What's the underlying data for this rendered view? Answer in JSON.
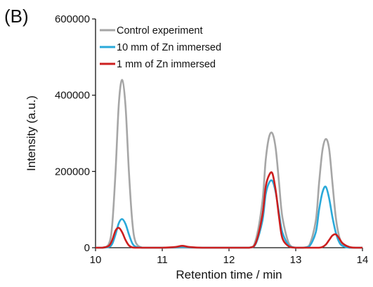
{
  "panel_label": "(B)",
  "chart_data": {
    "type": "line",
    "title": "",
    "xlabel": "Retention time / min",
    "ylabel": "Intensity (a.u.)",
    "xlim": [
      10,
      14
    ],
    "ylim": [
      0,
      600000
    ],
    "xticks": [
      10,
      11,
      12,
      13,
      14
    ],
    "yticks": [
      0,
      200000,
      400000,
      600000
    ],
    "grid": false,
    "legend_position": "top-left",
    "x": [
      10.0,
      10.1,
      10.2,
      10.25,
      10.3,
      10.35,
      10.4,
      10.45,
      10.5,
      10.55,
      10.6,
      10.7,
      10.8,
      11.0,
      11.2,
      11.3,
      11.4,
      11.6,
      12.0,
      12.3,
      12.4,
      12.5,
      12.55,
      12.6,
      12.65,
      12.7,
      12.75,
      12.8,
      12.9,
      13.0,
      13.1,
      13.2,
      13.3,
      13.35,
      13.4,
      13.45,
      13.5,
      13.55,
      13.6,
      13.65,
      13.7,
      13.8,
      13.9,
      14.0
    ],
    "series": [
      {
        "name": "Control experiment",
        "color": "#a6a6a6",
        "values": [
          0,
          0,
          10000,
          60000,
          200000,
          380000,
          440000,
          370000,
          200000,
          70000,
          15000,
          0,
          0,
          0,
          0,
          0,
          0,
          0,
          0,
          0,
          20000,
          120000,
          230000,
          290000,
          300000,
          260000,
          170000,
          80000,
          10000,
          0,
          0,
          5000,
          70000,
          170000,
          255000,
          285000,
          260000,
          170000,
          80000,
          30000,
          10000,
          0,
          0,
          0
        ]
      },
      {
        "name": "10 mm of Zn immersed",
        "color": "#2aa9d9",
        "values": [
          0,
          0,
          2000,
          10000,
          35000,
          65000,
          75000,
          62000,
          35000,
          12000,
          3000,
          0,
          0,
          0,
          1000,
          2000,
          1000,
          0,
          0,
          0,
          10000,
          70000,
          140000,
          170000,
          175000,
          145000,
          90000,
          40000,
          5000,
          0,
          0,
          3000,
          40000,
          100000,
          145000,
          160000,
          130000,
          80000,
          40000,
          15000,
          5000,
          0,
          0,
          0
        ]
      },
      {
        "name": "1 mm of Zn immersed",
        "color": "#cc1f1f",
        "values": [
          0,
          0,
          5000,
          20000,
          45000,
          52000,
          40000,
          20000,
          6000,
          1000,
          0,
          0,
          0,
          0,
          2000,
          5000,
          2000,
          0,
          0,
          0,
          12000,
          85000,
          160000,
          190000,
          195000,
          150000,
          80000,
          25000,
          3000,
          0,
          0,
          0,
          0,
          0,
          2000,
          8000,
          20000,
          32000,
          35000,
          25000,
          12000,
          2000,
          0,
          0
        ]
      }
    ]
  }
}
